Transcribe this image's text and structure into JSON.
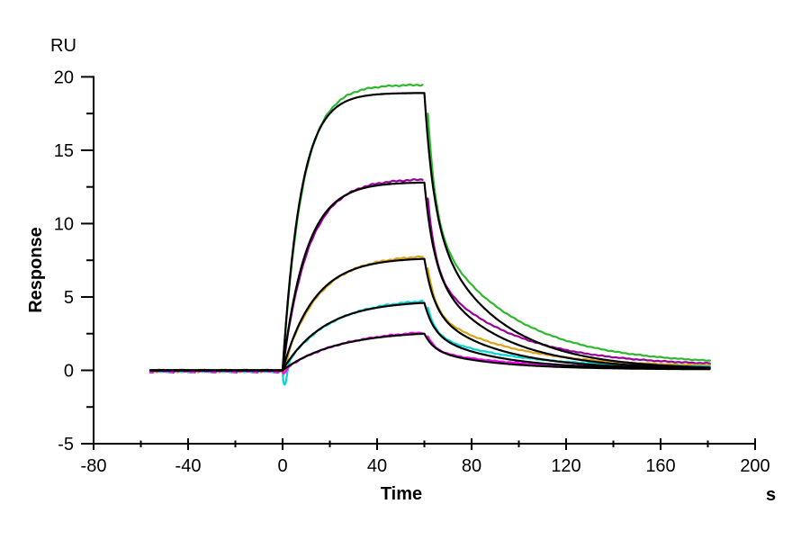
{
  "chart_data": {
    "type": "line",
    "title": "",
    "xlabel": "Time",
    "x_unit": "s",
    "ylabel": "Response",
    "y_unit": "RU",
    "xlim": [
      -80,
      200
    ],
    "ylim": [
      -5,
      20
    ],
    "x_major_ticks": [
      -80,
      -40,
      0,
      40,
      80,
      120,
      160,
      200
    ],
    "x_minor_ticks": [
      -60,
      -20,
      20,
      60,
      100,
      140,
      180
    ],
    "y_major_ticks": [
      -5,
      0,
      5,
      10,
      15,
      20
    ],
    "y_minor_ticks": [
      -2.5,
      2.5,
      7.5,
      12.5,
      17.5
    ],
    "grid": false,
    "legend": false,
    "background_color": "#ffffff",
    "axis_color": "#000000",
    "fit_color": "#000000",
    "baseline_start_s": -56,
    "injection_start_s": 0,
    "injection_end_s": 60,
    "end_s": 181,
    "phases": {
      "baseline": [
        -56,
        0
      ],
      "association": [
        0,
        60
      ],
      "dissociation": [
        60,
        181
      ]
    },
    "series": [
      {
        "name": "green",
        "color": "#2eb82e",
        "data_peak_ru": 19.45,
        "fit_plateau_ru": 18.9,
        "k_assoc": 0.13,
        "tail_ru": 0.4,
        "end_response_ru": 0.65,
        "dip_ru": 0.0,
        "dip_center_s": 1.0
      },
      {
        "name": "purple",
        "color": "#990099",
        "data_peak_ru": 13.0,
        "fit_plateau_ru": 12.8,
        "k_assoc": 0.1,
        "tail_ru": 0.3,
        "end_response_ru": 0.5,
        "dip_ru": 0.0,
        "dip_center_s": 1.0
      },
      {
        "name": "orange",
        "color": "#d9a31d",
        "data_peak_ru": 7.75,
        "fit_plateau_ru": 7.6,
        "k_assoc": 0.075,
        "tail_ru": 0.24,
        "end_response_ru": 0.4,
        "dip_ru": 0.55,
        "dip_center_s": 0.8
      },
      {
        "name": "cyan",
        "color": "#00d5d5",
        "data_peak_ru": 4.72,
        "fit_plateau_ru": 4.6,
        "k_assoc": 0.057,
        "tail_ru": 0.2,
        "end_response_ru": 0.3,
        "dip_ru": 1.2,
        "dip_center_s": 1.0
      },
      {
        "name": "magenta",
        "color": "#ff00ff",
        "data_peak_ru": 2.58,
        "fit_plateau_ru": 2.5,
        "k_assoc": 0.044,
        "tail_ru": 0.12,
        "end_response_ru": 0.15,
        "dip_ru": 0.3,
        "dip_center_s": 1.0
      }
    ],
    "model": {
      "data_k_assoc_scale": 0.92,
      "data_baseline_ru": -0.05,
      "baseline_noise_ru": 0.1,
      "assoc_noise_ru": 0.05,
      "diss_noise_ru": 0.03,
      "data_assoc_end_s": 59.5,
      "data_diss_start_s": 61.5,
      "data_diss_restart_frac": 0.9,
      "w_fast": 0.45,
      "data_k_fast": 0.3,
      "data_k_slow": 0.03,
      "fit_k_fast": 0.25,
      "fit_k_slow": 0.036,
      "fit_tail_ru": 0.06
    }
  }
}
